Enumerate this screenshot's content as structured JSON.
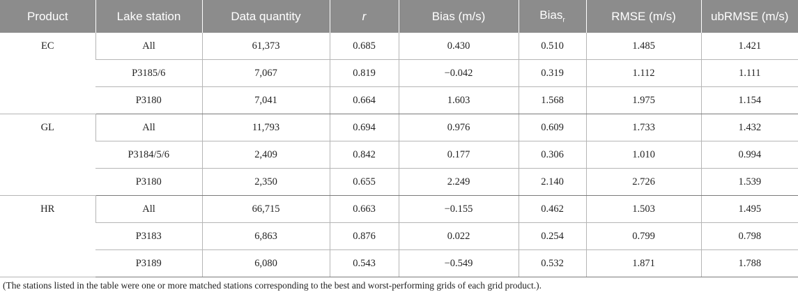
{
  "table": {
    "headers": {
      "product": "Product",
      "lake_station": "Lake station",
      "data_quantity": "Data quantity",
      "r": "r",
      "bias": "Bias (m/s)",
      "bias_r_main": "Bias",
      "bias_r_sub": "r",
      "rmse": "RMSE (m/s)",
      "ubrmse": "ubRMSE (m/s)"
    },
    "groups": [
      {
        "product": "EC",
        "rows": [
          [
            "All",
            "61,373",
            "0.685",
            "0.430",
            "0.510",
            "1.485",
            "1.421"
          ],
          [
            "P3185/6",
            "7,067",
            "0.819",
            "−0.042",
            "0.319",
            "1.112",
            "1.111"
          ],
          [
            "P3180",
            "7,041",
            "0.664",
            "1.603",
            "1.568",
            "1.975",
            "1.154"
          ]
        ]
      },
      {
        "product": "GL",
        "rows": [
          [
            "All",
            "11,793",
            "0.694",
            "0.976",
            "0.609",
            "1.733",
            "1.432"
          ],
          [
            "P3184/5/6",
            "2,409",
            "0.842",
            "0.177",
            "0.306",
            "1.010",
            "0.994"
          ],
          [
            "P3180",
            "2,350",
            "0.655",
            "2.249",
            "2.140",
            "2.726",
            "1.539"
          ]
        ]
      },
      {
        "product": "HR",
        "rows": [
          [
            "All",
            "66,715",
            "0.663",
            "−0.155",
            "0.462",
            "1.503",
            "1.495"
          ],
          [
            "P3183",
            "6,863",
            "0.876",
            "0.022",
            "0.254",
            "0.799",
            "0.798"
          ],
          [
            "P3189",
            "6,080",
            "0.543",
            "−0.549",
            "0.532",
            "1.871",
            "1.788"
          ]
        ]
      }
    ]
  },
  "footnote": "(The stations listed in the table were one or more matched stations corresponding to the best and worst-performing grids of each grid product.)."
}
